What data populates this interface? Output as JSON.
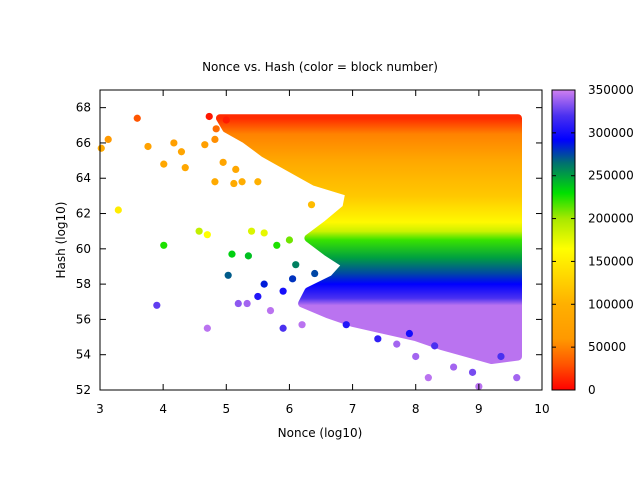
{
  "chart_data": {
    "type": "scatter",
    "title": "Nonce vs. Hash (color = block number)",
    "xlabel": "Nonce (log10)",
    "ylabel": "Hash (log10)",
    "xlim": [
      3,
      10
    ],
    "ylim": [
      52,
      69
    ],
    "xticks": [
      3,
      4,
      5,
      6,
      7,
      8,
      9,
      10
    ],
    "yticks": [
      52,
      54,
      56,
      58,
      60,
      62,
      64,
      66,
      68
    ],
    "grid": false,
    "colorbar": {
      "label_ticks": [
        0,
        50000,
        100000,
        150000,
        200000,
        250000,
        300000,
        350000
      ],
      "range": [
        0,
        350000
      ],
      "colormap": [
        {
          "value": 0,
          "color": "#ff0000"
        },
        {
          "value": 30000,
          "color": "#ff5500"
        },
        {
          "value": 60000,
          "color": "#ff9900"
        },
        {
          "value": 100000,
          "color": "#ffb000"
        },
        {
          "value": 140000,
          "color": "#ffe000"
        },
        {
          "value": 165000,
          "color": "#ffff00"
        },
        {
          "value": 200000,
          "color": "#a8e800"
        },
        {
          "value": 230000,
          "color": "#00e000"
        },
        {
          "value": 265000,
          "color": "#007070"
        },
        {
          "value": 292000,
          "color": "#0000ff"
        },
        {
          "value": 320000,
          "color": "#4a30f0"
        },
        {
          "value": 350000,
          "color": "#d080f0"
        }
      ]
    },
    "dense_region": {
      "x_max": 9.62,
      "outline": [
        [
          4.9,
          67.4
        ],
        [
          9.62,
          67.4
        ],
        [
          9.62,
          53.9
        ],
        [
          9.2,
          53.7
        ],
        [
          8.8,
          54.1
        ],
        [
          8.4,
          54.5
        ],
        [
          8.0,
          55.0
        ],
        [
          7.5,
          55.4
        ],
        [
          7.0,
          55.8
        ],
        [
          6.6,
          56.3
        ],
        [
          6.2,
          56.9
        ],
        [
          6.3,
          57.6
        ],
        [
          6.7,
          58.3
        ],
        [
          6.9,
          59.1
        ],
        [
          6.6,
          59.8
        ],
        [
          6.3,
          60.6
        ],
        [
          6.6,
          61.4
        ],
        [
          6.9,
          62.3
        ],
        [
          6.95,
          63.2
        ],
        [
          6.4,
          63.8
        ],
        [
          6.0,
          64.6
        ],
        [
          5.6,
          65.4
        ],
        [
          5.3,
          66.2
        ],
        [
          5.0,
          66.8
        ]
      ],
      "block_by_hash": [
        [
          67.4,
          15000
        ],
        [
          66.5,
          50000
        ],
        [
          65,
          85000
        ],
        [
          63,
          120000
        ],
        [
          61.5,
          160000
        ],
        [
          61,
          185000
        ],
        [
          60.5,
          220000
        ],
        [
          59.5,
          250000
        ],
        [
          58.6,
          275000
        ],
        [
          58,
          292000
        ],
        [
          57.2,
          320000
        ],
        [
          56.8,
          345000
        ],
        [
          54,
          345000
        ]
      ]
    },
    "points": [
      [
        3.02,
        65.7,
        90000
      ],
      [
        3.13,
        66.2,
        60000
      ],
      [
        3.59,
        67.4,
        30000
      ],
      [
        3.29,
        62.2,
        150000
      ],
      [
        4.01,
        60.2,
        225000
      ],
      [
        3.9,
        56.8,
        325000
      ],
      [
        4.7,
        55.5,
        345000
      ],
      [
        4.01,
        64.8,
        85000
      ],
      [
        3.76,
        65.8,
        75000
      ],
      [
        4.17,
        66.0,
        70000
      ],
      [
        4.29,
        65.5,
        80000
      ],
      [
        4.35,
        64.6,
        85000
      ],
      [
        4.57,
        61.0,
        190000
      ],
      [
        4.7,
        60.8,
        165000
      ],
      [
        5.03,
        58.5,
        270000
      ],
      [
        5.09,
        59.7,
        235000
      ],
      [
        5.35,
        59.6,
        240000
      ],
      [
        5.19,
        56.9,
        335000
      ],
      [
        5.33,
        56.9,
        340000
      ],
      [
        5.5,
        57.3,
        305000
      ],
      [
        5.6,
        58.0,
        285000
      ],
      [
        4.84,
        66.8,
        40000
      ],
      [
        5.0,
        67.3,
        10000
      ],
      [
        4.73,
        67.5,
        8000
      ],
      [
        4.82,
        66.2,
        55000
      ],
      [
        4.82,
        63.8,
        90000
      ],
      [
        5.12,
        63.7,
        90000
      ],
      [
        5.25,
        63.8,
        95000
      ],
      [
        5.5,
        63.8,
        100000
      ],
      [
        4.66,
        65.9,
        70000
      ],
      [
        4.95,
        64.9,
        80000
      ],
      [
        5.15,
        64.5,
        85000
      ],
      [
        5.7,
        56.5,
        345000
      ],
      [
        5.9,
        55.5,
        320000
      ],
      [
        5.9,
        57.6,
        300000
      ],
      [
        6.05,
        58.3,
        280000
      ],
      [
        6.2,
        55.7,
        345000
      ],
      [
        6.4,
        58.6,
        275000
      ],
      [
        6.1,
        59.1,
        260000
      ],
      [
        5.8,
        60.2,
        225000
      ],
      [
        5.4,
        61.0,
        180000
      ],
      [
        5.6,
        60.9,
        175000
      ],
      [
        6.0,
        60.5,
        210000
      ],
      [
        6.35,
        62.5,
        110000
      ],
      [
        7.4,
        54.9,
        310000
      ],
      [
        7.7,
        54.6,
        340000
      ],
      [
        8.0,
        53.9,
        340000
      ],
      [
        8.2,
        52.7,
        345000
      ],
      [
        8.6,
        53.3,
        340000
      ],
      [
        8.9,
        53.0,
        330000
      ],
      [
        9.0,
        52.2,
        345000
      ],
      [
        9.35,
        53.9,
        320000
      ],
      [
        9.6,
        52.7,
        340000
      ],
      [
        8.3,
        54.5,
        320000
      ],
      [
        7.9,
        55.2,
        300000
      ],
      [
        6.9,
        55.7,
        305000
      ]
    ]
  }
}
